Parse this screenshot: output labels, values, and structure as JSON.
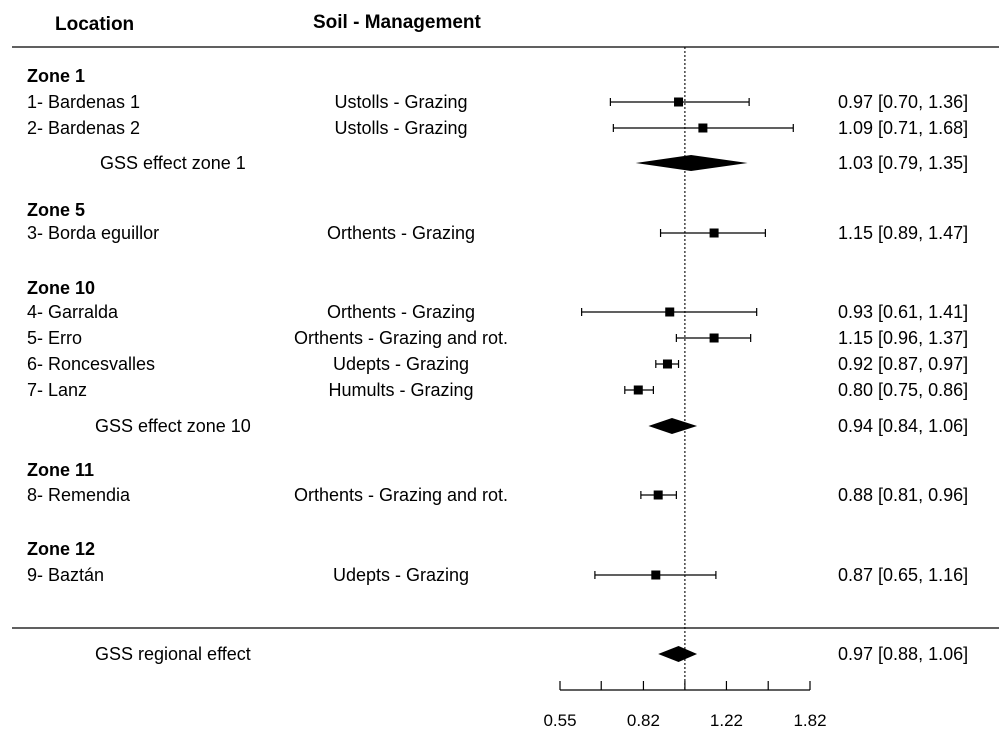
{
  "chart_data": {
    "type": "forest",
    "headers": {
      "location": "Location",
      "soil": "Soil - Management"
    },
    "null_value": 1.0,
    "x_scale": "log",
    "xlim": [
      0.55,
      1.82
    ],
    "x_ticks": [
      0.55,
      0.67,
      0.82,
      1.0,
      1.22,
      1.49,
      1.82
    ],
    "x_tick_labels": [
      "0.55",
      "",
      "0.82",
      "",
      "1.22",
      "",
      "1.82"
    ],
    "rows": [
      {
        "kind": "zone",
        "label": "Zone 1"
      },
      {
        "kind": "study",
        "label": "1- Bardenas 1",
        "soil": "Ustolls - Grazing",
        "est": 0.97,
        "lo": 0.7,
        "hi": 1.36,
        "text": "0.97 [0.70, 1.36]"
      },
      {
        "kind": "study",
        "label": "2- Bardenas 2",
        "soil": "Ustolls - Grazing",
        "est": 1.09,
        "lo": 0.71,
        "hi": 1.68,
        "text": "1.09 [0.71, 1.68]"
      },
      {
        "kind": "summary",
        "label": "GSS effect zone 1",
        "est": 1.03,
        "lo": 0.79,
        "hi": 1.35,
        "text": "1.03 [0.79, 1.35]"
      },
      {
        "kind": "zone",
        "label": "Zone 5"
      },
      {
        "kind": "study",
        "label": "3- Borda eguillor",
        "soil": "Orthents - Grazing",
        "est": 1.15,
        "lo": 0.89,
        "hi": 1.47,
        "text": "1.15 [0.89, 1.47]"
      },
      {
        "kind": "zone",
        "label": "Zone 10"
      },
      {
        "kind": "study",
        "label": "4- Garralda",
        "soil": "Orthents - Grazing",
        "est": 0.93,
        "lo": 0.61,
        "hi": 1.41,
        "text": "0.93 [0.61, 1.41]"
      },
      {
        "kind": "study",
        "label": "5- Erro",
        "soil": "Orthents - Grazing and rot.",
        "est": 1.15,
        "lo": 0.96,
        "hi": 1.37,
        "text": "1.15 [0.96, 1.37]"
      },
      {
        "kind": "study",
        "label": "6- Roncesvalles",
        "soil": "Udepts - Grazing",
        "est": 0.92,
        "lo": 0.87,
        "hi": 0.97,
        "text": "0.92 [0.87, 0.97]"
      },
      {
        "kind": "study",
        "label": "7- Lanz",
        "soil": "Humults - Grazing",
        "est": 0.8,
        "lo": 0.75,
        "hi": 0.86,
        "text": "0.80 [0.75, 0.86]"
      },
      {
        "kind": "summary",
        "label": "GSS effect zone 10",
        "est": 0.94,
        "lo": 0.84,
        "hi": 1.06,
        "text": "0.94 [0.84, 1.06]"
      },
      {
        "kind": "zone",
        "label": "Zone 11"
      },
      {
        "kind": "study",
        "label": "8- Remendia",
        "soil": "Orthents - Grazing and rot.",
        "est": 0.88,
        "lo": 0.81,
        "hi": 0.96,
        "text": "0.88 [0.81, 0.96]"
      },
      {
        "kind": "zone",
        "label": "Zone 12"
      },
      {
        "kind": "study",
        "label": "9- Baztán",
        "soil": "Udepts - Grazing",
        "est": 0.87,
        "lo": 0.65,
        "hi": 1.16,
        "text": "0.87 [0.65, 1.16]"
      },
      {
        "kind": "overall",
        "label": "GSS regional effect",
        "est": 0.97,
        "lo": 0.88,
        "hi": 1.06,
        "text": "0.97 [0.88, 1.06]"
      }
    ]
  }
}
